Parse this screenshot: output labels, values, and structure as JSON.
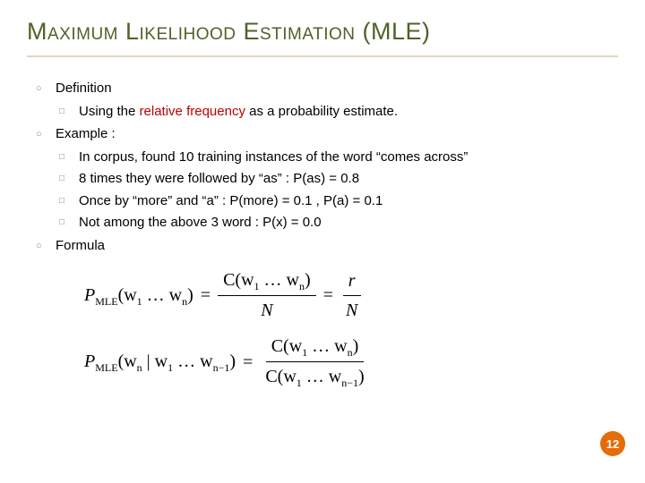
{
  "title": "Maximum Likelihood Estimation (MLE)",
  "title_color": "#4f6228",
  "underline_color": "#e0d8c0",
  "bullets": {
    "definition": {
      "label": "Definition",
      "sub1_pre": "Using the ",
      "sub1_hl": "relative frequency",
      "sub1_post": " as a probability estimate.",
      "highlight_color": "#c00000"
    },
    "example": {
      "label": "Example :",
      "s1": "In corpus, found 10 training instances of the word “comes across”",
      "s2": "8 times they were followed by “as” : P(as) = 0.8",
      "s3": "Once by “more” and “a” : P(more) = 0.1 , P(a) = 0.1",
      "s4": "Not among the above 3 word : P(x) = 0.0"
    },
    "formula": {
      "label": "Formula"
    }
  },
  "formulas": {
    "f1": {
      "lhs_base": "P",
      "lhs_sub": "MLE",
      "arg_open": "(w",
      "arg_sub1": "1",
      "arg_mid": " … w",
      "arg_subn": "n",
      "arg_close": ")",
      "eq": "=",
      "frac1_num_open": "C(w",
      "frac1_num_s1": "1",
      "frac1_num_mid": " … w",
      "frac1_num_sn": "n",
      "frac1_num_close": ")",
      "frac1_den": "N",
      "frac2_num": "r",
      "frac2_den": "N"
    },
    "f2": {
      "lhs_base": "P",
      "lhs_sub": "MLE",
      "cond_open": "(w",
      "cond_sn": "n",
      "cond_bar": " | w",
      "cond_s1": "1",
      "cond_mid": " … w",
      "cond_snm1": "n−1",
      "cond_close": ")",
      "eq": "=",
      "num_open": "C(w",
      "num_s1": "1",
      "num_mid": " … w",
      "num_sn": "n",
      "num_close": ")",
      "den_open": "C(w",
      "den_s1": "1",
      "den_mid": " … w",
      "den_snm1": "n−1",
      "den_close": ")"
    }
  },
  "page_number": "12",
  "badge_color": "#e46c0a"
}
